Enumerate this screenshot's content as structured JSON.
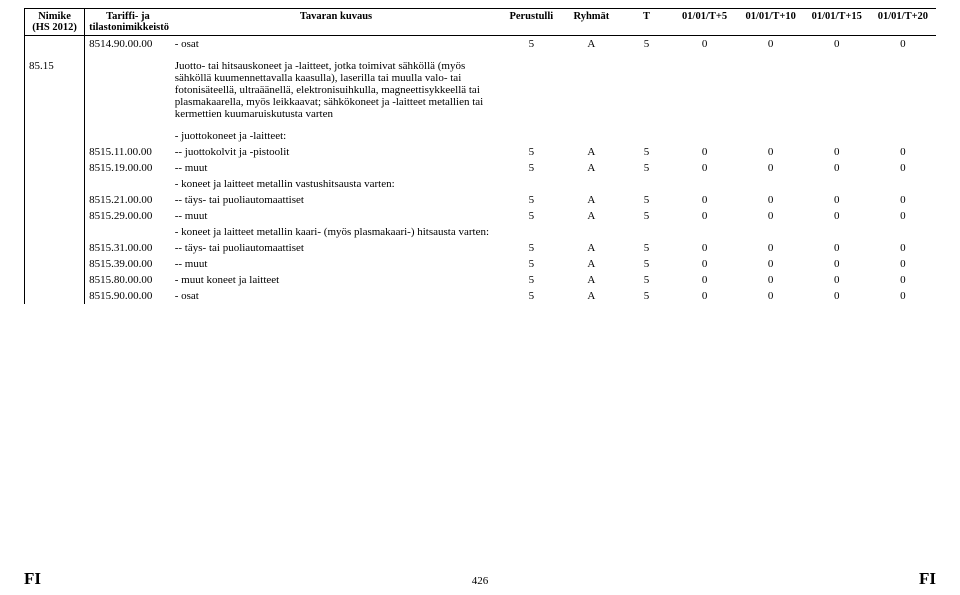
{
  "header": {
    "col1": "Nimike (HS 2012)",
    "col2": "Tariffi- ja tilastonimikkeistö",
    "col3": "Tavaran kuvaus",
    "col4": "Perustulli",
    "col5": "Ryhmät",
    "col6": "T",
    "col7": "01/01/T+5",
    "col8": "01/01/T+10",
    "col9": "01/01/T+15",
    "col10": "01/01/T+20"
  },
  "rows": [
    {
      "c1": "",
      "c2": "8514.90.00.00",
      "desc": "- osat",
      "p": "5",
      "r": "A",
      "t": "5",
      "v1": "0",
      "v2": "0",
      "v3": "0",
      "v4": "0"
    },
    {
      "c1": "85.15",
      "c2": "",
      "desc": "Juotto- tai hitsauskoneet ja -laitteet, jotka toimivat sähköllä (myös sähköllä kuumennettavalla kaasulla), laserilla tai muulla valo- tai fotonisäteellä, ultraäänellä, elektronisuihkulla, magneettisykkeellä tai plasmakaarella, myös leikkaavat; sähkökoneet ja -laitteet metallien tai kermettien kuumaruiskutusta varten",
      "p": "",
      "r": "",
      "t": "",
      "v1": "",
      "v2": "",
      "v3": "",
      "v4": ""
    },
    {
      "c1": "",
      "c2": "",
      "desc": "- juottokoneet ja -laitteet:",
      "p": "",
      "r": "",
      "t": "",
      "v1": "",
      "v2": "",
      "v3": "",
      "v4": ""
    },
    {
      "c1": "",
      "c2": "8515.11.00.00",
      "desc": "-- juottokolvit ja -pistoolit",
      "p": "5",
      "r": "A",
      "t": "5",
      "v1": "0",
      "v2": "0",
      "v3": "0",
      "v4": "0"
    },
    {
      "c1": "",
      "c2": "8515.19.00.00",
      "desc": "-- muut",
      "p": "5",
      "r": "A",
      "t": "5",
      "v1": "0",
      "v2": "0",
      "v3": "0",
      "v4": "0"
    },
    {
      "c1": "",
      "c2": "",
      "desc": "- koneet ja laitteet metallin vastushitsausta varten:",
      "p": "",
      "r": "",
      "t": "",
      "v1": "",
      "v2": "",
      "v3": "",
      "v4": ""
    },
    {
      "c1": "",
      "c2": "8515.21.00.00",
      "desc": "-- täys- tai puoliautomaattiset",
      "p": "5",
      "r": "A",
      "t": "5",
      "v1": "0",
      "v2": "0",
      "v3": "0",
      "v4": "0"
    },
    {
      "c1": "",
      "c2": "8515.29.00.00",
      "desc": "-- muut",
      "p": "5",
      "r": "A",
      "t": "5",
      "v1": "0",
      "v2": "0",
      "v3": "0",
      "v4": "0"
    },
    {
      "c1": "",
      "c2": "",
      "desc": "- koneet ja laitteet metallin kaari- (myös plasmakaari-) hitsausta varten:",
      "p": "",
      "r": "",
      "t": "",
      "v1": "",
      "v2": "",
      "v3": "",
      "v4": ""
    },
    {
      "c1": "",
      "c2": "8515.31.00.00",
      "desc": "-- täys- tai puoliautomaattiset",
      "p": "5",
      "r": "A",
      "t": "5",
      "v1": "0",
      "v2": "0",
      "v3": "0",
      "v4": "0"
    },
    {
      "c1": "",
      "c2": "8515.39.00.00",
      "desc": "-- muut",
      "p": "5",
      "r": "A",
      "t": "5",
      "v1": "0",
      "v2": "0",
      "v3": "0",
      "v4": "0"
    },
    {
      "c1": "",
      "c2": "8515.80.00.00",
      "desc": "- muut koneet ja laitteet",
      "p": "5",
      "r": "A",
      "t": "5",
      "v1": "0",
      "v2": "0",
      "v3": "0",
      "v4": "0"
    },
    {
      "c1": "",
      "c2": "8515.90.00.00",
      "desc": "- osat",
      "p": "5",
      "r": "A",
      "t": "5",
      "v1": "0",
      "v2": "0",
      "v3": "0",
      "v4": "0"
    }
  ],
  "footer": {
    "left": "FI",
    "page": "426",
    "right": "FI"
  }
}
